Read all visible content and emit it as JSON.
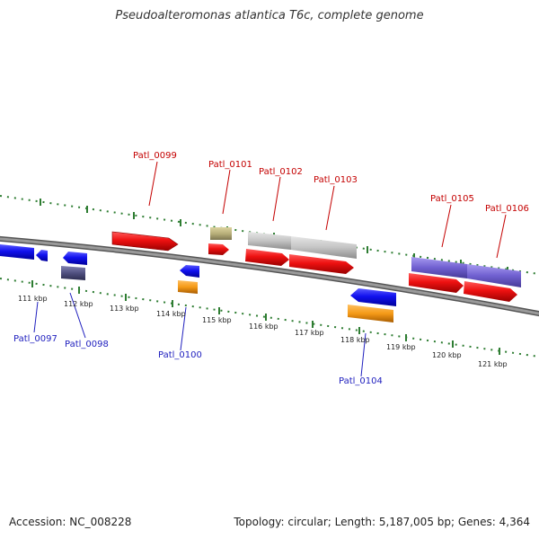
{
  "title": "Pseudoalteromonas atlantica T6c, complete genome",
  "accession": {
    "label": "Accession:",
    "value": "NC_008228"
  },
  "summary": "Topology: circular; Length: 5,187,005 bp; Genes: 4,364",
  "axis": {
    "ticks": [
      "111 kbp",
      "112 kbp",
      "113 kbp",
      "114 kbp",
      "115 kbp",
      "116 kbp",
      "117 kbp",
      "118 kbp",
      "119 kbp",
      "120 kbp",
      "121 kbp"
    ]
  },
  "colors": {
    "backbone": "#808080",
    "tick_dots": "#2e7d32",
    "forward_label": "#c40000",
    "reverse_label": "#1e1ebe",
    "red_gene": "#ee1111",
    "blue_gene": "#1111ee",
    "orange_gene": "#f59a17",
    "gray_gene": "#bfbfbf",
    "olive_gene": "#b9b07a",
    "purple_gene": "#7060d0",
    "slate_gene": "#505080"
  },
  "gene_labels": {
    "forward": [
      "Patl_0099",
      "Patl_0101",
      "Patl_0102",
      "Patl_0103",
      "Patl_0105",
      "Patl_0106"
    ],
    "reverse": [
      "Patl_0097",
      "Patl_0098",
      "Patl_0100",
      "Patl_0104"
    ]
  }
}
